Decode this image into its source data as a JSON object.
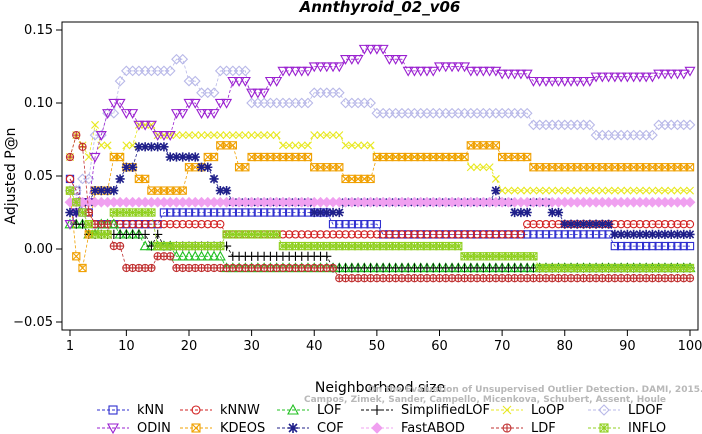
{
  "chart_data": {
    "type": "line",
    "title": "Annthyroid_02_v06",
    "xlabel": "Neighborhood size",
    "ylabel": "Adjusted P@n",
    "xlim": [
      1,
      100
    ],
    "ylim": [
      -0.05,
      0.15
    ],
    "x_ticks": [
      1,
      10,
      20,
      30,
      40,
      50,
      60,
      70,
      80,
      90,
      100
    ],
    "y_ticks": [
      -0.05,
      0.0,
      0.05,
      0.1,
      0.15
    ],
    "y_tick_labels": [
      "−0.05",
      "0.00",
      "0.05",
      "0.10",
      "0.15"
    ],
    "grid": false,
    "legend_position": "bottom",
    "watermark": [
      "Campos, Zimek, Sander, Campello, Micenkova, Schubert, Assent, Houle",
      "On the Evaluation of Unsupervised Outlier Detection. DAMI, 2015."
    ],
    "series": [
      {
        "name": "kNN",
        "color": "#2f2fcf",
        "marker": "square",
        "points": [
          [
            1,
            0.048
          ],
          [
            2,
            0.04
          ],
          [
            3,
            0.025
          ],
          [
            5,
            0.017
          ],
          [
            10,
            0.017
          ],
          [
            15,
            0.017
          ],
          [
            16,
            0.025
          ],
          [
            25,
            0.025
          ],
          [
            30,
            0.025
          ],
          [
            40,
            0.025
          ],
          [
            43,
            0.017
          ],
          [
            50,
            0.017
          ],
          [
            51,
            0.01
          ],
          [
            60,
            0.01
          ],
          [
            70,
            0.01
          ],
          [
            80,
            0.01
          ],
          [
            87,
            0.01
          ],
          [
            88,
            0.002
          ],
          [
            100,
            0.002
          ]
        ]
      },
      {
        "name": "kNNW",
        "color": "#d22020",
        "marker": "circle",
        "points": [
          [
            1,
            0.048
          ],
          [
            2,
            0.04
          ],
          [
            3,
            0.032
          ],
          [
            4,
            0.025
          ],
          [
            5,
            0.017
          ],
          [
            10,
            0.017
          ],
          [
            20,
            0.017
          ],
          [
            25,
            0.017
          ],
          [
            26,
            0.01
          ],
          [
            40,
            0.01
          ],
          [
            60,
            0.01
          ],
          [
            73,
            0.01
          ],
          [
            74,
            0.017
          ],
          [
            90,
            0.017
          ],
          [
            100,
            0.017
          ]
        ]
      },
      {
        "name": "LOF",
        "color": "#20c020",
        "marker": "triangle-up",
        "points": [
          [
            1,
            0.017
          ],
          [
            3,
            0.017
          ],
          [
            4,
            0.01
          ],
          [
            5,
            0.01
          ],
          [
            6,
            0.017
          ],
          [
            8,
            0.017
          ],
          [
            9,
            0.01
          ],
          [
            12,
            0.01
          ],
          [
            13,
            0.002
          ],
          [
            17,
            0.002
          ],
          [
            18,
            -0.005
          ],
          [
            25,
            -0.005
          ],
          [
            26,
            -0.013
          ],
          [
            100,
            -0.013
          ]
        ]
      },
      {
        "name": "SimplifiedLOF",
        "color": "#000000",
        "marker": "plus",
        "points": [
          [
            1,
            0.025
          ],
          [
            2,
            0.017
          ],
          [
            3,
            0.017
          ],
          [
            4,
            0.01
          ],
          [
            6,
            0.01
          ],
          [
            10,
            0.01
          ],
          [
            12,
            0.01
          ],
          [
            14,
            0.002
          ],
          [
            15,
            0.01
          ],
          [
            16,
            0.002
          ],
          [
            25,
            0.002
          ],
          [
            27,
            -0.005
          ],
          [
            42,
            -0.005
          ],
          [
            43,
            -0.013
          ],
          [
            70,
            -0.013
          ],
          [
            100,
            -0.013
          ]
        ]
      },
      {
        "name": "LoOP",
        "color": "#e8e820",
        "marker": "cross",
        "points": [
          [
            1,
            0.063
          ],
          [
            2,
            0.078
          ],
          [
            3,
            0.071
          ],
          [
            4,
            0.063
          ],
          [
            5,
            0.085
          ],
          [
            6,
            0.071
          ],
          [
            8,
            0.063
          ],
          [
            10,
            0.071
          ],
          [
            12,
            0.085
          ],
          [
            15,
            0.078
          ],
          [
            20,
            0.078
          ],
          [
            25,
            0.078
          ],
          [
            30,
            0.078
          ],
          [
            35,
            0.071
          ],
          [
            40,
            0.078
          ],
          [
            45,
            0.071
          ],
          [
            50,
            0.063
          ],
          [
            55,
            0.063
          ],
          [
            60,
            0.063
          ],
          [
            65,
            0.056
          ],
          [
            69,
            0.048
          ],
          [
            70,
            0.04
          ],
          [
            80,
            0.04
          ],
          [
            90,
            0.04
          ],
          [
            100,
            0.04
          ]
        ]
      },
      {
        "name": "LDOF",
        "color": "#b8b8e8",
        "marker": "diamond",
        "points": [
          [
            1,
            0.04
          ],
          [
            3,
            0.048
          ],
          [
            5,
            0.078
          ],
          [
            7,
            0.093
          ],
          [
            9,
            0.115
          ],
          [
            10,
            0.122
          ],
          [
            15,
            0.122
          ],
          [
            18,
            0.13
          ],
          [
            20,
            0.115
          ],
          [
            22,
            0.107
          ],
          [
            25,
            0.122
          ],
          [
            30,
            0.1
          ],
          [
            35,
            0.1
          ],
          [
            40,
            0.107
          ],
          [
            45,
            0.1
          ],
          [
            50,
            0.093
          ],
          [
            60,
            0.093
          ],
          [
            70,
            0.093
          ],
          [
            75,
            0.085
          ],
          [
            80,
            0.085
          ],
          [
            85,
            0.078
          ],
          [
            90,
            0.078
          ],
          [
            95,
            0.085
          ],
          [
            100,
            0.085
          ]
        ]
      },
      {
        "name": "ODIN",
        "color": "#9a20d0",
        "marker": "triangle-down",
        "points": [
          [
            1,
            0.017
          ],
          [
            2,
            0.025
          ],
          [
            3,
            0.032
          ],
          [
            5,
            0.063
          ],
          [
            6,
            0.078
          ],
          [
            7,
            0.093
          ],
          [
            8,
            0.1
          ],
          [
            10,
            0.093
          ],
          [
            12,
            0.085
          ],
          [
            15,
            0.078
          ],
          [
            18,
            0.093
          ],
          [
            20,
            0.1
          ],
          [
            22,
            0.093
          ],
          [
            25,
            0.1
          ],
          [
            27,
            0.115
          ],
          [
            30,
            0.107
          ],
          [
            33,
            0.115
          ],
          [
            35,
            0.122
          ],
          [
            40,
            0.125
          ],
          [
            45,
            0.13
          ],
          [
            48,
            0.137
          ],
          [
            50,
            0.137
          ],
          [
            52,
            0.13
          ],
          [
            55,
            0.122
          ],
          [
            60,
            0.125
          ],
          [
            65,
            0.122
          ],
          [
            70,
            0.12
          ],
          [
            75,
            0.115
          ],
          [
            80,
            0.115
          ],
          [
            85,
            0.118
          ],
          [
            90,
            0.118
          ],
          [
            95,
            0.12
          ],
          [
            100,
            0.122
          ]
        ]
      },
      {
        "name": "KDEOS",
        "color": "#f0a000",
        "marker": "square-x",
        "points": [
          [
            1,
            0.04
          ],
          [
            2,
            -0.005
          ],
          [
            3,
            -0.013
          ],
          [
            4,
            0.01
          ],
          [
            5,
            0.04
          ],
          [
            8,
            0.063
          ],
          [
            10,
            0.056
          ],
          [
            12,
            0.048
          ],
          [
            14,
            0.04
          ],
          [
            18,
            0.04
          ],
          [
            20,
            0.056
          ],
          [
            23,
            0.063
          ],
          [
            25,
            0.071
          ],
          [
            28,
            0.056
          ],
          [
            30,
            0.063
          ],
          [
            35,
            0.063
          ],
          [
            40,
            0.056
          ],
          [
            45,
            0.048
          ],
          [
            50,
            0.063
          ],
          [
            55,
            0.063
          ],
          [
            60,
            0.063
          ],
          [
            65,
            0.071
          ],
          [
            70,
            0.063
          ],
          [
            75,
            0.056
          ],
          [
            80,
            0.056
          ],
          [
            85,
            0.056
          ],
          [
            90,
            0.056
          ],
          [
            100,
            0.056
          ]
        ]
      },
      {
        "name": "COF",
        "color": "#20208a",
        "marker": "asterisk",
        "points": [
          [
            1,
            0.025
          ],
          [
            3,
            0.032
          ],
          [
            5,
            0.04
          ],
          [
            8,
            0.04
          ],
          [
            9,
            0.048
          ],
          [
            10,
            0.056
          ],
          [
            12,
            0.07
          ],
          [
            15,
            0.07
          ],
          [
            17,
            0.063
          ],
          [
            20,
            0.063
          ],
          [
            22,
            0.056
          ],
          [
            24,
            0.048
          ],
          [
            25,
            0.04
          ],
          [
            27,
            0.032
          ],
          [
            30,
            0.032
          ],
          [
            35,
            0.032
          ],
          [
            40,
            0.025
          ],
          [
            45,
            0.032
          ],
          [
            50,
            0.032
          ],
          [
            55,
            0.032
          ],
          [
            60,
            0.032
          ],
          [
            65,
            0.032
          ],
          [
            69,
            0.04
          ],
          [
            70,
            0.032
          ],
          [
            72,
            0.025
          ],
          [
            75,
            0.032
          ],
          [
            78,
            0.025
          ],
          [
            80,
            0.017
          ],
          [
            85,
            0.017
          ],
          [
            88,
            0.01
          ],
          [
            90,
            0.01
          ],
          [
            100,
            0.01
          ]
        ]
      },
      {
        "name": "FastABOD",
        "color": "#f0a0f0",
        "marker": "diamond-filled",
        "points": [
          [
            1,
            0.032
          ],
          [
            5,
            0.032
          ],
          [
            10,
            0.032
          ],
          [
            20,
            0.032
          ],
          [
            30,
            0.032
          ],
          [
            40,
            0.032
          ],
          [
            50,
            0.032
          ],
          [
            60,
            0.032
          ],
          [
            70,
            0.032
          ],
          [
            80,
            0.032
          ],
          [
            90,
            0.032
          ],
          [
            100,
            0.032
          ]
        ]
      },
      {
        "name": "LDF",
        "color": "#c03030",
        "marker": "circle-plus",
        "points": [
          [
            1,
            0.063
          ],
          [
            2,
            0.078
          ],
          [
            3,
            0.07
          ],
          [
            4,
            0.025
          ],
          [
            5,
            0.017
          ],
          [
            8,
            0.002
          ],
          [
            10,
            -0.013
          ],
          [
            13,
            -0.013
          ],
          [
            15,
            -0.005
          ],
          [
            18,
            -0.013
          ],
          [
            25,
            -0.013
          ],
          [
            30,
            -0.013
          ],
          [
            40,
            -0.013
          ],
          [
            44,
            -0.02
          ],
          [
            60,
            -0.02
          ],
          [
            80,
            -0.02
          ],
          [
            100,
            -0.02
          ]
        ]
      },
      {
        "name": "INFLO",
        "color": "#90d020",
        "marker": "square-asterisk",
        "points": [
          [
            1,
            0.04
          ],
          [
            2,
            0.032
          ],
          [
            3,
            0.025
          ],
          [
            4,
            0.017
          ],
          [
            5,
            0.01
          ],
          [
            8,
            0.025
          ],
          [
            10,
            0.025
          ],
          [
            14,
            0.025
          ],
          [
            15,
            0.002
          ],
          [
            20,
            0.002
          ],
          [
            26,
            0.01
          ],
          [
            30,
            0.01
          ],
          [
            35,
            0.002
          ],
          [
            60,
            0.002
          ],
          [
            64,
            -0.005
          ],
          [
            75,
            -0.005
          ],
          [
            76,
            -0.013
          ],
          [
            100,
            -0.013
          ]
        ]
      }
    ]
  }
}
